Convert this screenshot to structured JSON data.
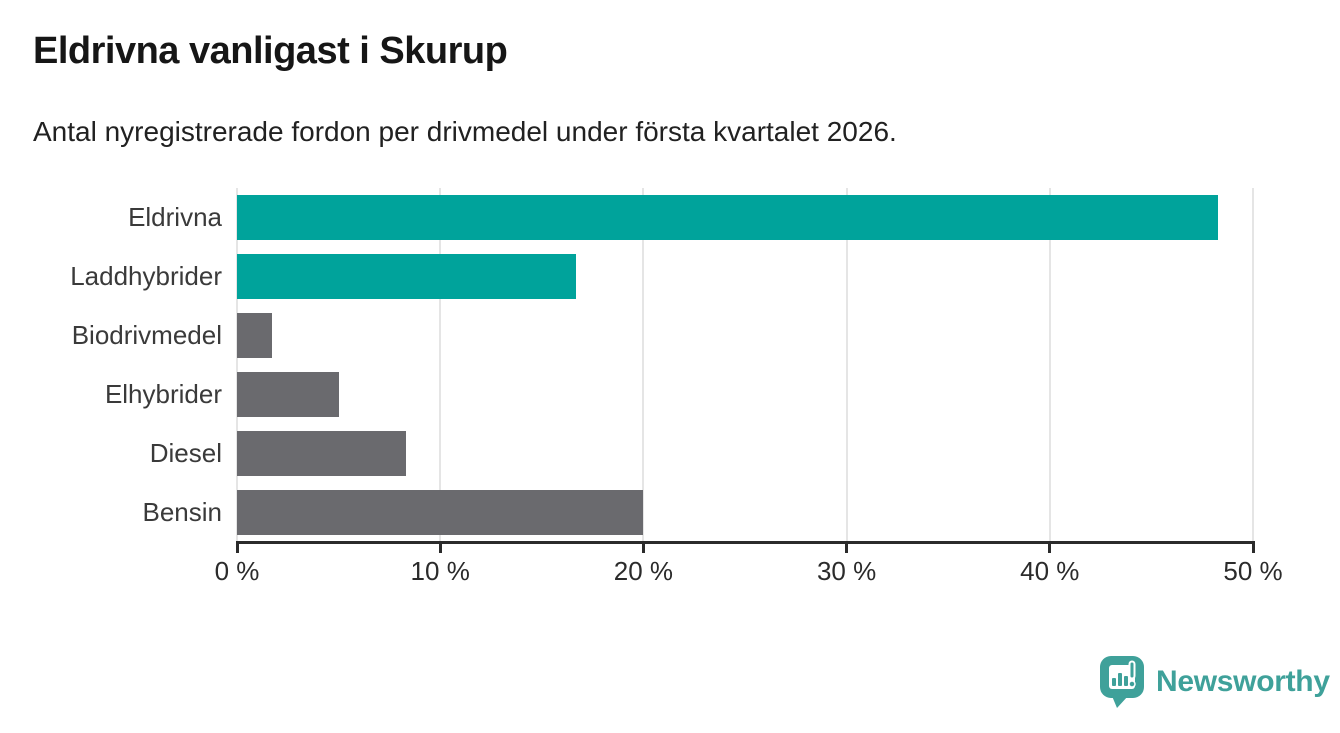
{
  "chart_data": {
    "type": "bar",
    "orientation": "horizontal",
    "title": "Eldrivna vanligast i Skurup",
    "subtitle": "Antal nyregistrerade fordon per drivmedel under första kvartalet 2026.",
    "categories": [
      "Eldrivna",
      "Laddhybrider",
      "Biodrivmedel",
      "Elhybrider",
      "Diesel",
      "Bensin"
    ],
    "values": [
      48.3,
      16.7,
      1.7,
      5.0,
      8.3,
      20.0
    ],
    "unit": "%",
    "xlabel": "",
    "ylabel": "",
    "xlim": [
      0,
      50
    ],
    "x_ticks": [
      0,
      10,
      20,
      30,
      40,
      50
    ],
    "x_tick_labels": [
      "0 %",
      "10 %",
      "20 %",
      "30 %",
      "40 %",
      "50 %"
    ],
    "grid": true,
    "legend": false,
    "bar_colors": [
      "#00a39b",
      "#00a39b",
      "#6a6a6e",
      "#6a6a6e",
      "#6a6a6e",
      "#6a6a6e"
    ],
    "highlight_color": "#00a39b",
    "default_color": "#6a6a6e"
  },
  "footer": {
    "brand": "Newsworthy",
    "brand_color": "#3fa19a"
  }
}
